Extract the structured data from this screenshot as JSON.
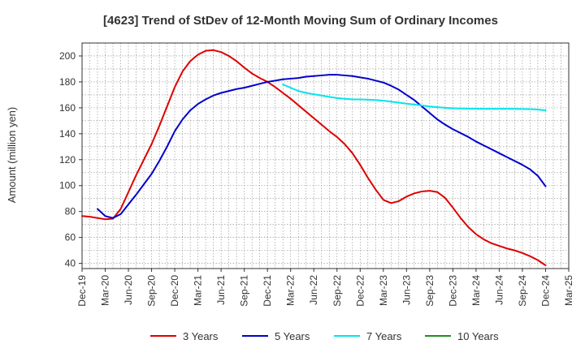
{
  "chart_data": {
    "type": "line",
    "title": "[4623]  Trend of StDev of 12-Month Moving Sum of Ordinary Incomes",
    "xlabel": "",
    "ylabel": "Amount (million yen)",
    "ylim": [
      36,
      210
    ],
    "yticks": [
      40,
      60,
      80,
      100,
      120,
      140,
      160,
      180,
      200
    ],
    "xlim": [
      "2019-12",
      "2025-03"
    ],
    "x_tick_labels": [
      "Dec-19",
      "Mar-20",
      "Jun-20",
      "Sep-20",
      "Dec-20",
      "Mar-21",
      "Jun-21",
      "Sep-21",
      "Dec-21",
      "Mar-22",
      "Jun-22",
      "Sep-22",
      "Dec-22",
      "Mar-23",
      "Jun-23",
      "Sep-23",
      "Dec-23",
      "Mar-24",
      "Jun-24",
      "Sep-24",
      "Dec-24",
      "Mar-25"
    ],
    "grid": true,
    "legend_position": "bottom",
    "series": [
      {
        "name": "3 Years",
        "color": "#dd0000",
        "points": [
          [
            "2019-12",
            76.5
          ],
          [
            "2020-01",
            76
          ],
          [
            "2020-02",
            75
          ],
          [
            "2020-03",
            74
          ],
          [
            "2020-04",
            74.5
          ],
          [
            "2020-05",
            82
          ],
          [
            "2020-06",
            95
          ],
          [
            "2020-07",
            108
          ],
          [
            "2020-08",
            120
          ],
          [
            "2020-09",
            132
          ],
          [
            "2020-10",
            146
          ],
          [
            "2020-11",
            161
          ],
          [
            "2020-12",
            176
          ],
          [
            "2021-01",
            188
          ],
          [
            "2021-02",
            196
          ],
          [
            "2021-03",
            201
          ],
          [
            "2021-04",
            204
          ],
          [
            "2021-05",
            204.5
          ],
          [
            "2021-06",
            203
          ],
          [
            "2021-07",
            200
          ],
          [
            "2021-08",
            196
          ],
          [
            "2021-09",
            191
          ],
          [
            "2021-10",
            186.5
          ],
          [
            "2021-11",
            183
          ],
          [
            "2021-12",
            180
          ],
          [
            "2022-01",
            176
          ],
          [
            "2022-02",
            171.5
          ],
          [
            "2022-03",
            167
          ],
          [
            "2022-04",
            162
          ],
          [
            "2022-05",
            157
          ],
          [
            "2022-06",
            152
          ],
          [
            "2022-07",
            147
          ],
          [
            "2022-08",
            142
          ],
          [
            "2022-09",
            137.5
          ],
          [
            "2022-10",
            132
          ],
          [
            "2022-11",
            125
          ],
          [
            "2022-12",
            116
          ],
          [
            "2023-01",
            106
          ],
          [
            "2023-02",
            97
          ],
          [
            "2023-03",
            89
          ],
          [
            "2023-04",
            86.5
          ],
          [
            "2023-05",
            88
          ],
          [
            "2023-06",
            91.5
          ],
          [
            "2023-07",
            94
          ],
          [
            "2023-08",
            95.5
          ],
          [
            "2023-09",
            96
          ],
          [
            "2023-10",
            95
          ],
          [
            "2023-11",
            90.5
          ],
          [
            "2023-12",
            83
          ],
          [
            "2024-01",
            75
          ],
          [
            "2024-02",
            68
          ],
          [
            "2024-03",
            62.5
          ],
          [
            "2024-04",
            58.5
          ],
          [
            "2024-05",
            55.5
          ],
          [
            "2024-06",
            53.5
          ],
          [
            "2024-07",
            51.5
          ],
          [
            "2024-08",
            50
          ],
          [
            "2024-09",
            48
          ],
          [
            "2024-10",
            45.5
          ],
          [
            "2024-11",
            42.5
          ],
          [
            "2024-12",
            38.5
          ]
        ]
      },
      {
        "name": "5 Years",
        "color": "#0000cc",
        "points": [
          [
            "2020-02",
            82
          ],
          [
            "2020-03",
            76.5
          ],
          [
            "2020-04",
            75
          ],
          [
            "2020-05",
            78
          ],
          [
            "2020-06",
            85.5
          ],
          [
            "2020-07",
            93
          ],
          [
            "2020-08",
            101
          ],
          [
            "2020-09",
            109
          ],
          [
            "2020-10",
            119
          ],
          [
            "2020-11",
            130
          ],
          [
            "2020-12",
            142
          ],
          [
            "2021-01",
            151
          ],
          [
            "2021-02",
            158
          ],
          [
            "2021-03",
            163
          ],
          [
            "2021-04",
            166.5
          ],
          [
            "2021-05",
            169.5
          ],
          [
            "2021-06",
            171.5
          ],
          [
            "2021-07",
            173
          ],
          [
            "2021-08",
            174.5
          ],
          [
            "2021-09",
            175.5
          ],
          [
            "2021-10",
            177
          ],
          [
            "2021-11",
            178.5
          ],
          [
            "2021-12",
            180
          ],
          [
            "2022-01",
            181
          ],
          [
            "2022-02",
            182
          ],
          [
            "2022-03",
            182.5
          ],
          [
            "2022-04",
            183
          ],
          [
            "2022-05",
            184
          ],
          [
            "2022-06",
            184.5
          ],
          [
            "2022-07",
            185
          ],
          [
            "2022-08",
            185.5
          ],
          [
            "2022-09",
            185.5
          ],
          [
            "2022-10",
            185
          ],
          [
            "2022-11",
            184.5
          ],
          [
            "2022-12",
            183.5
          ],
          [
            "2023-01",
            182.5
          ],
          [
            "2023-02",
            181
          ],
          [
            "2023-03",
            179.5
          ],
          [
            "2023-04",
            177
          ],
          [
            "2023-05",
            174
          ],
          [
            "2023-06",
            170
          ],
          [
            "2023-07",
            166
          ],
          [
            "2023-08",
            161
          ],
          [
            "2023-09",
            156
          ],
          [
            "2023-10",
            151
          ],
          [
            "2023-11",
            147
          ],
          [
            "2023-12",
            143.5
          ],
          [
            "2024-01",
            140.5
          ],
          [
            "2024-02",
            137.5
          ],
          [
            "2024-03",
            134
          ],
          [
            "2024-04",
            131
          ],
          [
            "2024-05",
            128
          ],
          [
            "2024-06",
            125
          ],
          [
            "2024-07",
            122
          ],
          [
            "2024-08",
            119
          ],
          [
            "2024-09",
            116
          ],
          [
            "2024-10",
            112.5
          ],
          [
            "2024-11",
            107.5
          ],
          [
            "2024-12",
            99.5
          ]
        ]
      },
      {
        "name": "7 Years",
        "color": "#00e5ee",
        "points": [
          [
            "2022-02",
            178
          ],
          [
            "2022-03",
            175.5
          ],
          [
            "2022-04",
            173
          ],
          [
            "2022-05",
            171.5
          ],
          [
            "2022-06",
            170.5
          ],
          [
            "2022-07",
            169.5
          ],
          [
            "2022-08",
            168.5
          ],
          [
            "2022-09",
            167.5
          ],
          [
            "2022-10",
            167
          ],
          [
            "2022-11",
            166.5
          ],
          [
            "2022-12",
            166.5
          ],
          [
            "2023-01",
            166.3
          ],
          [
            "2023-02",
            166
          ],
          [
            "2023-03",
            165.5
          ],
          [
            "2023-04",
            164.8
          ],
          [
            "2023-05",
            164
          ],
          [
            "2023-06",
            163.2
          ],
          [
            "2023-07",
            162.5
          ],
          [
            "2023-08",
            161.8
          ],
          [
            "2023-09",
            161
          ],
          [
            "2023-10",
            160.5
          ],
          [
            "2023-11",
            160
          ],
          [
            "2023-12",
            159.7
          ],
          [
            "2024-01",
            159.5
          ],
          [
            "2024-02",
            159.4
          ],
          [
            "2024-03",
            159.3
          ],
          [
            "2024-04",
            159.2
          ],
          [
            "2024-05",
            159.2
          ],
          [
            "2024-06",
            159.2
          ],
          [
            "2024-07",
            159.2
          ],
          [
            "2024-08",
            159.2
          ],
          [
            "2024-09",
            159.1
          ],
          [
            "2024-10",
            159
          ],
          [
            "2024-11",
            158.7
          ],
          [
            "2024-12",
            158
          ]
        ]
      },
      {
        "name": "10 Years",
        "color": "#228b22",
        "points": []
      }
    ]
  }
}
